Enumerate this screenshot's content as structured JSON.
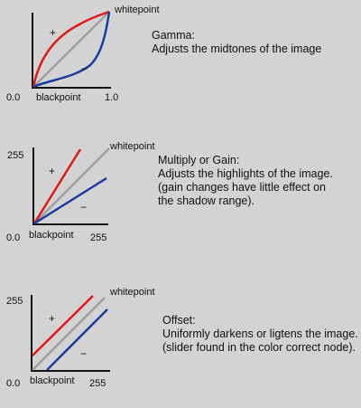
{
  "colors": {
    "background": "#d4d3d3",
    "axis": "#111111",
    "increase_curve": "#e01818",
    "identity_curve": "#a0a0a0",
    "decrease_curve": "#1a3aa0"
  },
  "panels": [
    {
      "id": "gamma",
      "axis_labels": {
        "whitepoint": "whitepoint",
        "blackpoint": "blackpoint",
        "origin": "0.0",
        "x_max": "1.0",
        "y_max": ""
      },
      "plus": "+",
      "minus": "−",
      "title": "Gamma:",
      "lines": [
        "Adjusts the midtones of the image"
      ]
    },
    {
      "id": "gain",
      "axis_labels": {
        "whitepoint": "whitepoint",
        "blackpoint": "blackpoint",
        "origin": "0.0",
        "x_max": "255",
        "y_max": "255"
      },
      "plus": "+",
      "minus": "−",
      "title": "Multiply or Gain:",
      "lines": [
        "Adjusts the highlights of the image.",
        "(gain changes have little effect on",
        "the shadow range)."
      ]
    },
    {
      "id": "offset",
      "axis_labels": {
        "whitepoint": "whitepoint",
        "blackpoint": "blackpoint",
        "origin": "0.0",
        "x_max": "255",
        "y_max": "255"
      },
      "plus": "+",
      "minus": "−",
      "title": "Offset:",
      "lines": [
        "Uniformly darkens or ligtens the image.",
        "(slider found in the color correct node)."
      ]
    }
  ]
}
